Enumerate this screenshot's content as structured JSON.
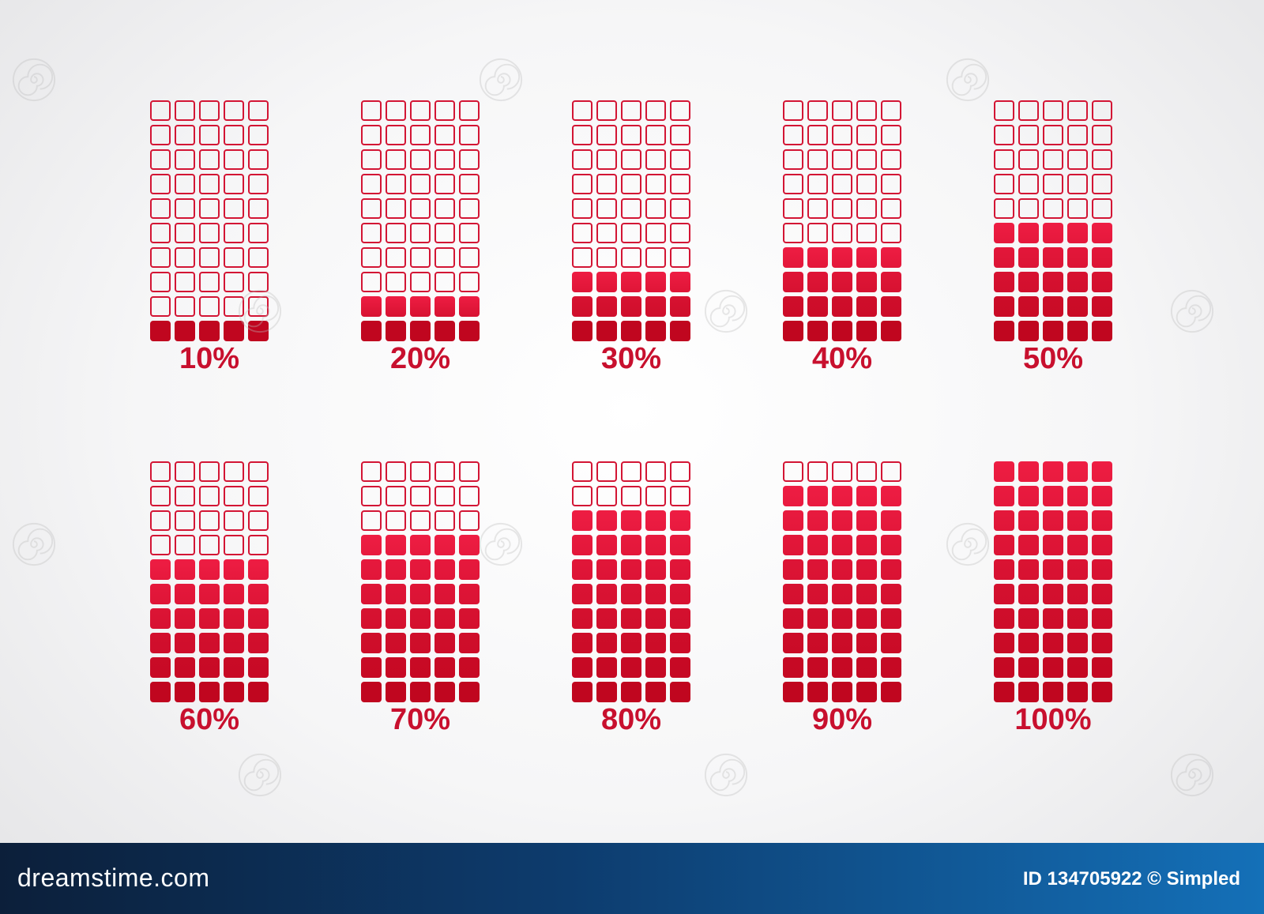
{
  "gauges": [
    {
      "label": "10%",
      "level": 0.1
    },
    {
      "label": "20%",
      "level": 0.2
    },
    {
      "label": "30%",
      "level": 0.3
    },
    {
      "label": "40%",
      "level": 0.4
    },
    {
      "label": "50%",
      "level": 0.5
    },
    {
      "label": "60%",
      "level": 0.6
    },
    {
      "label": "70%",
      "level": 0.7
    },
    {
      "label": "80%",
      "level": 0.8
    },
    {
      "label": "90%",
      "level": 0.9
    },
    {
      "label": "100%",
      "level": 1.0
    }
  ],
  "colors": {
    "fill_top": "#ee1d43",
    "fill_bottom": "#c0061f",
    "outline": "#d31534",
    "label": "#c8102e",
    "footer_dark": "#0c1f3a",
    "footer_light": "#1470b8"
  },
  "watermark_icon": "spiral-watermark-icon",
  "footer": {
    "site": "dreamstime.com",
    "credit": "ID 134705922 © Simpled"
  }
}
